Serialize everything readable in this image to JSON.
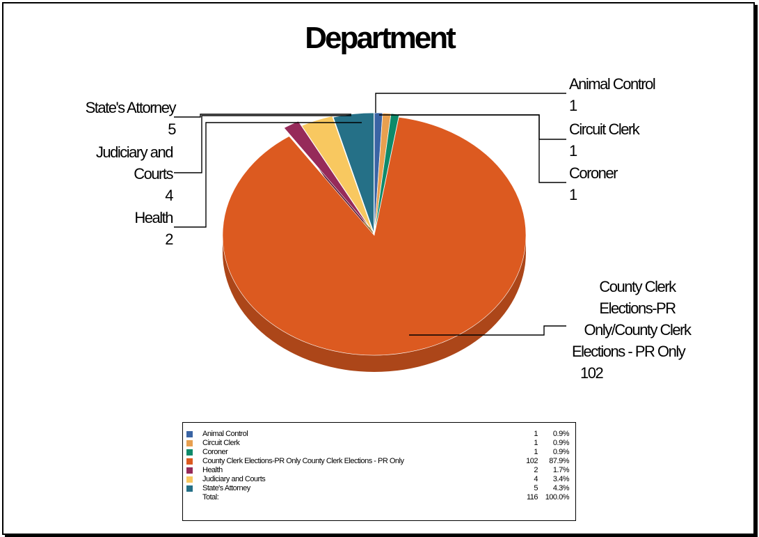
{
  "chart_data": {
    "type": "pie",
    "title": "Department",
    "slices": [
      {
        "name": "Animal Control",
        "value": 1,
        "percent": "0.9%",
        "color": "#3a64a4",
        "label_lines": [
          "Animal Control",
          "1"
        ]
      },
      {
        "name": "Circuit Clerk",
        "value": 1,
        "percent": "0.9%",
        "color": "#e8a050",
        "label_lines": [
          "Circuit Clerk",
          "1"
        ]
      },
      {
        "name": "Coroner",
        "value": 1,
        "percent": "0.9%",
        "color": "#0e8a6a",
        "label_lines": [
          "Coroner",
          "1"
        ]
      },
      {
        "name": "County Clerk Elections-PR Only/County Clerk Elections - PR Only",
        "legend_name": "County Clerk Elections-PR Only County Clerk Elections - PR Only",
        "value": 102,
        "percent": "87.9%",
        "color": "#dc5a20",
        "label_lines": [
          "County Clerk",
          "Elections-PR",
          "Only/County Clerk",
          "Elections - PR Only",
          "102"
        ]
      },
      {
        "name": "Health",
        "value": 2,
        "percent": "1.7%",
        "color": "#962a5a",
        "label_lines": [
          "Health",
          "2"
        ]
      },
      {
        "name": "Judiciary and Courts",
        "value": 4,
        "percent": "3.4%",
        "color": "#f8c860",
        "label_lines": [
          "Judiciary and",
          "Courts",
          "4"
        ]
      },
      {
        "name": "State's Attorney",
        "value": 5,
        "percent": "4.3%",
        "color": "#257087",
        "label_lines": [
          "State's Attorney",
          "5"
        ]
      }
    ],
    "legend": {
      "total_label": "Total:",
      "total_value": 116,
      "total_percent": "100.0%"
    }
  }
}
